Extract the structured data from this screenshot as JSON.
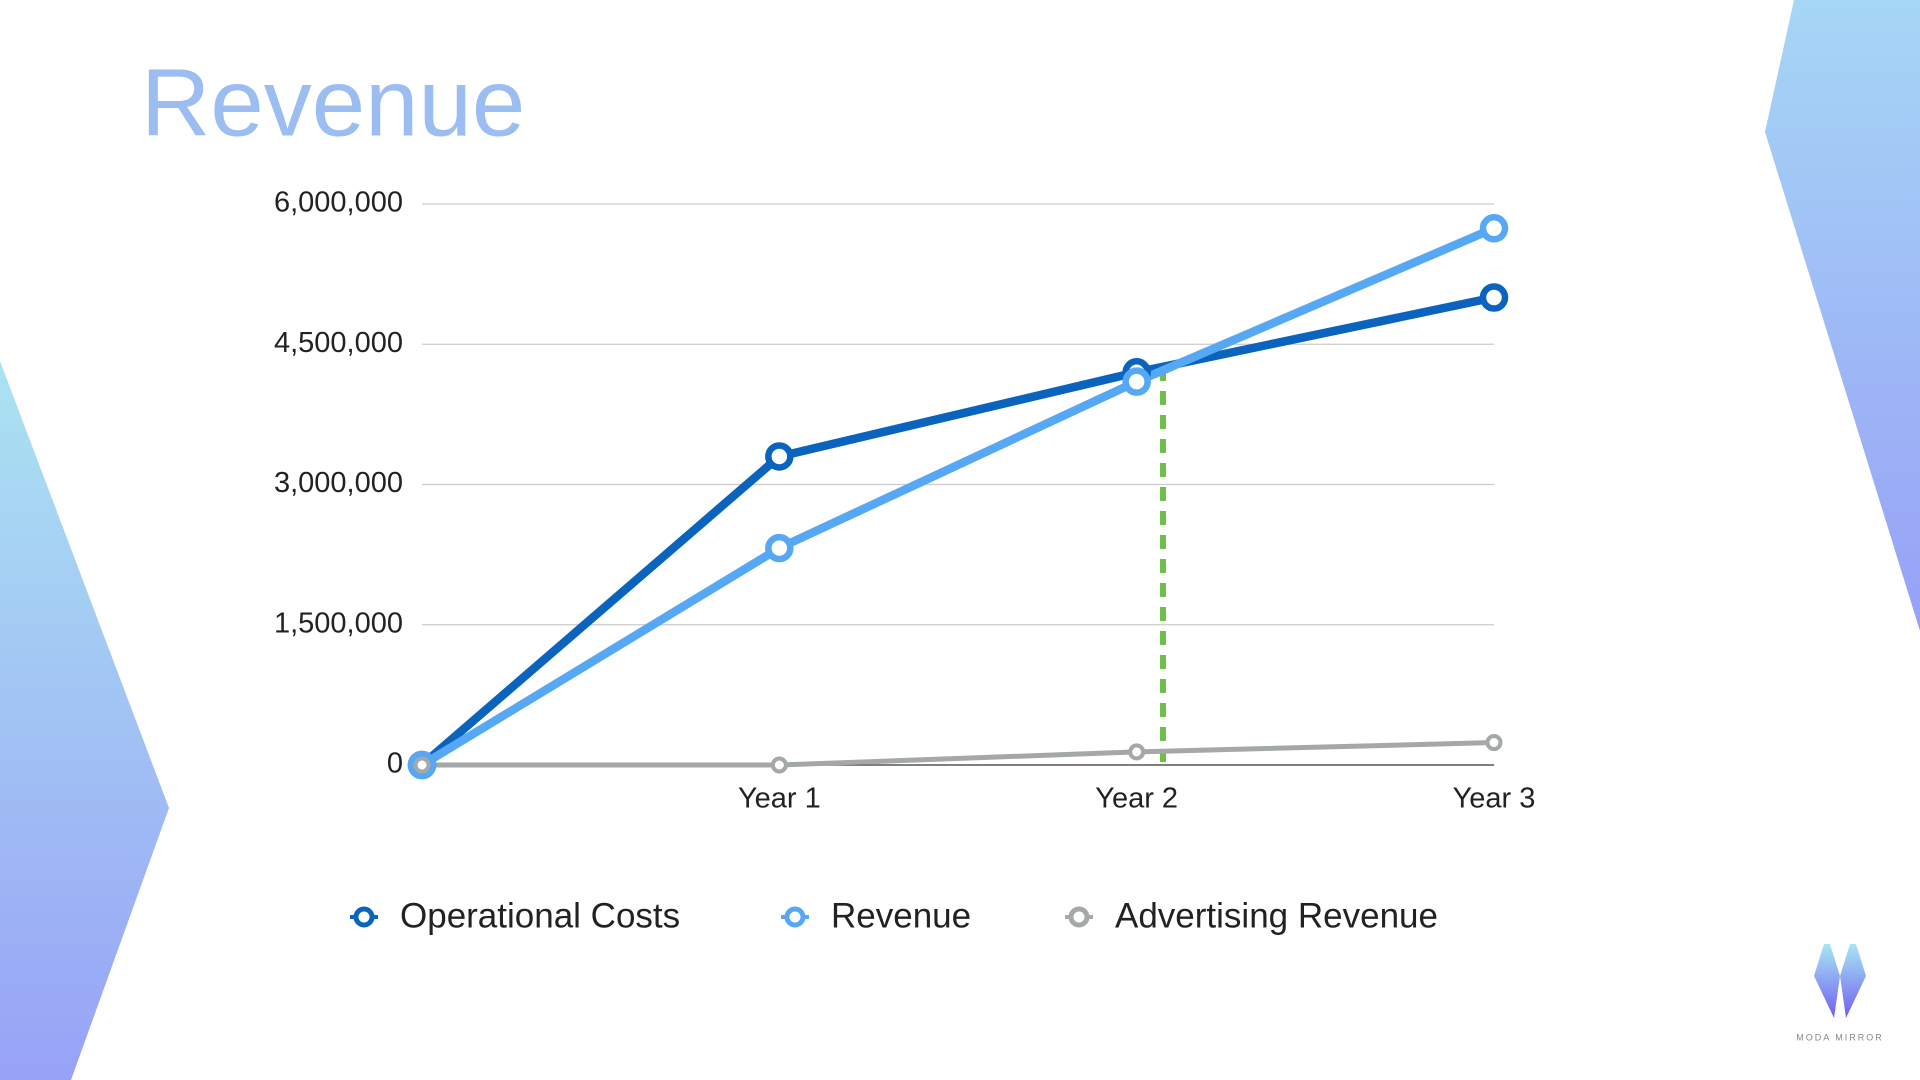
{
  "chart_data": {
    "type": "line",
    "title": "Revenue",
    "categories": [
      null,
      "Year 1",
      "Year 2",
      "Year 3"
    ],
    "series": [
      {
        "name": "Operational Costs",
        "color": "#0a64be",
        "values": [
          0,
          3300000,
          4200000,
          5000000
        ]
      },
      {
        "name": "Revenue",
        "color": "#56a8f5",
        "values": [
          0,
          2320000,
          4100000,
          5740000
        ]
      },
      {
        "name": "Advertising Revenue",
        "color": "#a4a8a8",
        "values": [
          0,
          0,
          140000,
          240000
        ]
      }
    ],
    "ylim": [
      0,
      6000000
    ],
    "yticks": [
      0,
      {
        "value": 1500000,
        "label": "1,500,000"
      },
      {
        "value": 3000000,
        "label": "3,000,000"
      },
      {
        "value": 4500000,
        "label": "4,500,000"
      },
      {
        "value": 6000000,
        "label": "6,000,000"
      }
    ],
    "grid": true,
    "legend": "bottom"
  },
  "logo_text": "MODA MIRROR"
}
